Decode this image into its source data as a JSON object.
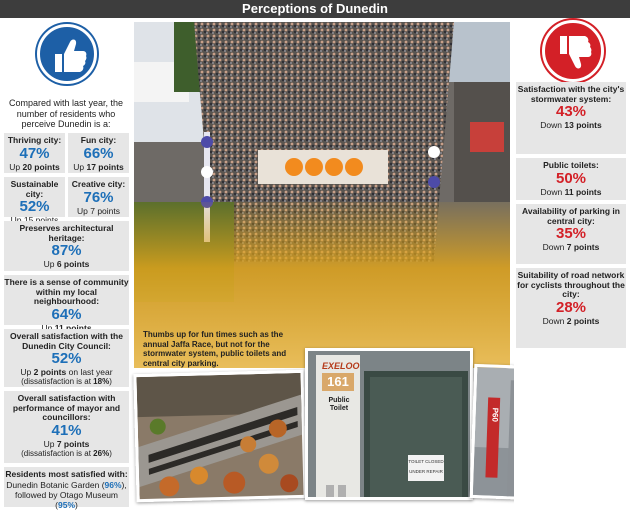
{
  "title": "Perceptions of Dunedin",
  "intro": "Compared with last year, the number of residents who perceive Dunedin is a:",
  "left_cards": {
    "thriving": {
      "label": "Thriving city:",
      "value": "47%",
      "change_pre": "Up",
      "change_pts": "20 points"
    },
    "fun": {
      "label": "Fun city:",
      "value": "66%",
      "change_pre": "Up",
      "change_pts": "17 points"
    },
    "sustainable": {
      "label": "Sustainable city:",
      "value": "52%",
      "change_pre": "Up 15 points",
      "change_pts": ""
    },
    "creative": {
      "label": "Creative city:",
      "value": "76%",
      "change_pre": "Up 7 points",
      "change_pts": ""
    },
    "heritage": {
      "label": "Preserves architectural heritage:",
      "value": "87%",
      "change_pre": "Up",
      "change_pts": "6 points"
    },
    "community": {
      "label": "There is a sense of community within my local neighbourhood:",
      "value": "64%",
      "change_pre": "Up",
      "change_pts": "11 points"
    },
    "council": {
      "label": "Overall satisfaction with the Dunedin City Council:",
      "value": "52%",
      "change_pre": "Up",
      "change_pts": "2 points",
      "change_post": "on last year",
      "note_pre": "(dissatisfaction is at",
      "note_val": "18%",
      "note_post": ")"
    },
    "mayor": {
      "label": "Overall satisfaction with performance of mayor and councillors:",
      "value": "41%",
      "change_pre": "Up",
      "change_pts": "7 points",
      "note_pre": "(dissatisfaction is at",
      "note_val": "26%",
      "note_post": ")"
    },
    "residents": {
      "label": "Residents most satisfied with:",
      "line1_pre": "Dunedin Botanic Garden (",
      "line1_val": "96%",
      "line1_post": "),",
      "line2_pre": "followed by Otago Museum (",
      "line2_val": "95%",
      "line2_post": ")"
    }
  },
  "right_cards": [
    {
      "label": "Satisfaction with the city's stormwater system:",
      "value": "43%",
      "change_pre": "Down",
      "change_pts": "13 points"
    },
    {
      "label": "Public toilets:",
      "value": "50%",
      "change_pre": "Down",
      "change_pts": "11 points"
    },
    {
      "label": "Availability of parking in central city:",
      "value": "35%",
      "change_pre": "Down",
      "change_pts": "7 points"
    },
    {
      "label": "Suitability of road network for cyclists throughout the city:",
      "value": "28%",
      "change_pre": "Down",
      "change_pts": "2 points"
    }
  ],
  "caption": "Thumbs up for fun times such as the annual Jaffa Race, but not for the stormwater system, public toilets and central city parking.",
  "toilet_sign": {
    "brand": "EXELOO",
    "number": "161",
    "heading": "Public Toilet",
    "notice1": "TOILET CLOSED",
    "notice2": "UNDER REPAIR"
  },
  "meter_sign": "P60",
  "icons": {
    "thumbs_up": "thumbs-up-icon",
    "thumbs_down": "thumbs-down-icon"
  },
  "colors": {
    "blue": "#1d6fb8",
    "red": "#d32027",
    "card": "#e6e6e6",
    "title_bar": "#3d3d3d"
  }
}
